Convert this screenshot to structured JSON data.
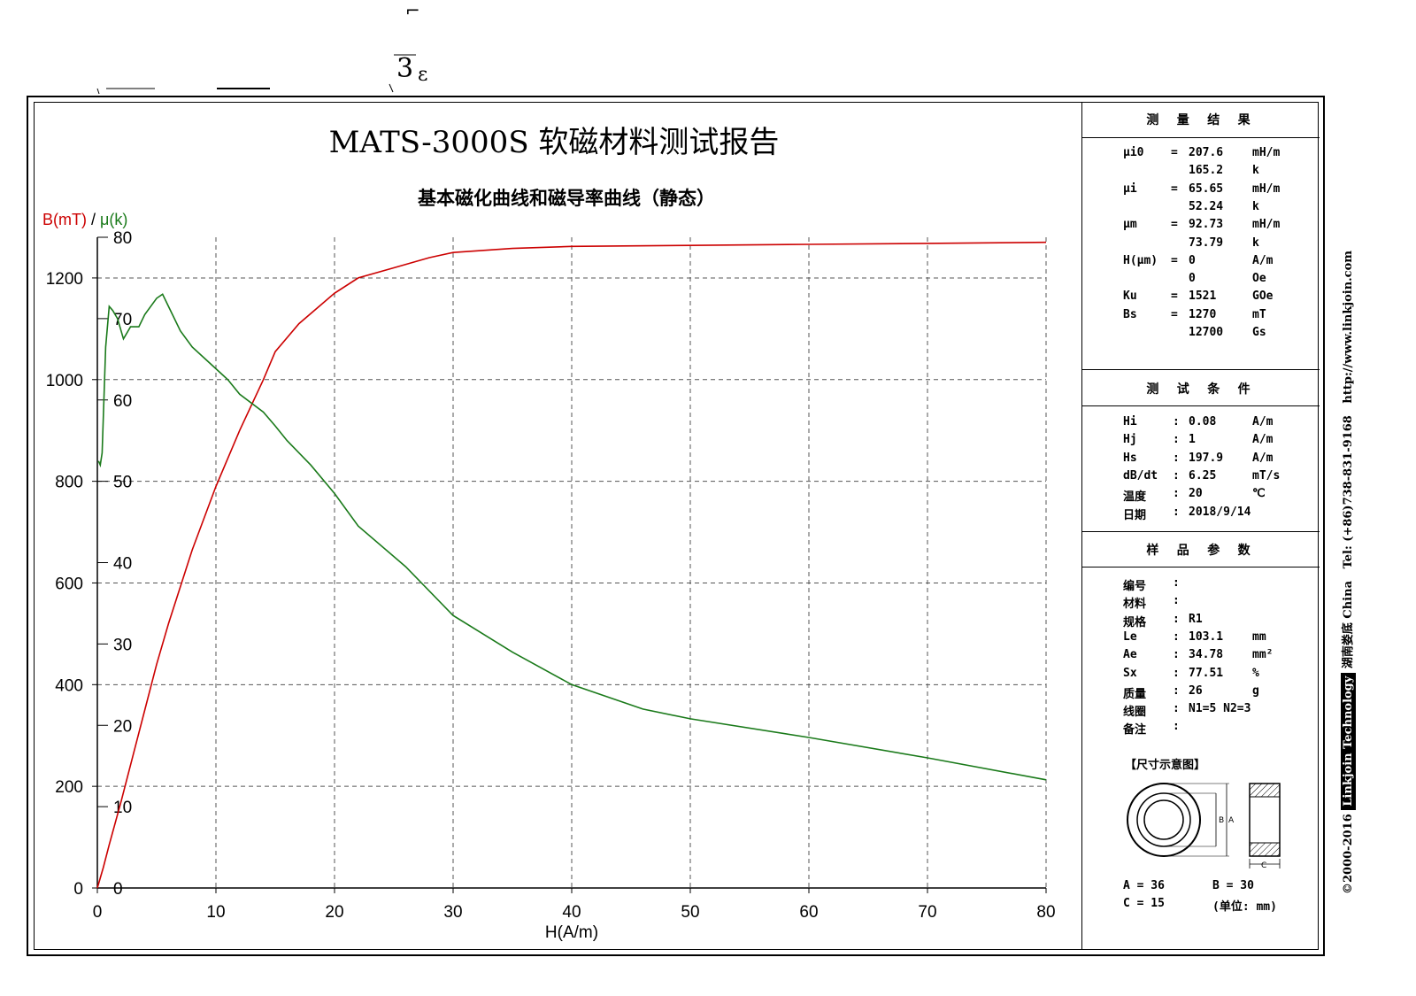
{
  "report_title": "MATS-3000S 软磁材料测试报告",
  "chart_data": {
    "type": "line",
    "title": "基本磁化曲线和磁导率曲线（静态）",
    "xlabel": "H(A/m)",
    "ylabel_left": "B(mT)",
    "ylabel_sep": " / ",
    "ylabel_right": "μ(k)",
    "xlim": [
      0,
      80
    ],
    "ylim_left": [
      0,
      1280
    ],
    "ylim_right": [
      0,
      80
    ],
    "x_ticks": [
      "0",
      "10",
      "20",
      "30",
      "40",
      "50",
      "60",
      "70",
      "80"
    ],
    "y_left_ticks": [
      "0",
      "200",
      "400",
      "600",
      "800",
      "1000",
      "1200"
    ],
    "y_right_ticks": [
      "0",
      "10",
      "20",
      "30",
      "40",
      "50",
      "60",
      "70",
      "80"
    ],
    "grid": true,
    "series": [
      {
        "axis": "left",
        "color": "#cc0000",
        "x": [
          0,
          0.5,
          1,
          2,
          3,
          4,
          5,
          6,
          8,
          10,
          12,
          14,
          15,
          17,
          20,
          22,
          25,
          28,
          30,
          35,
          40,
          50,
          60,
          70,
          80
        ],
        "y": [
          0,
          40,
          85,
          170,
          260,
          350,
          440,
          520,
          665,
          790,
          900,
          1000,
          1055,
          1110,
          1170,
          1200,
          1220,
          1240,
          1250,
          1258,
          1262,
          1264,
          1266,
          1268,
          1270
        ]
      },
      {
        "axis": "right",
        "color": "#1a7a1a",
        "x": [
          0.1,
          0.25,
          0.4,
          0.7,
          1.0,
          1.3,
          1.7,
          2.2,
          2.8,
          3.5,
          4.0,
          5.0,
          5.5,
          6.0,
          7.0,
          8.0,
          9.5,
          11,
          12,
          14,
          15,
          16,
          18,
          20,
          22,
          26,
          30,
          35,
          40,
          46,
          50,
          60,
          70,
          80
        ],
        "y": [
          52.5,
          52.0,
          53.5,
          66.5,
          71.5,
          71.0,
          70.0,
          67.5,
          69.0,
          69.0,
          70.5,
          72.5,
          73.0,
          71.5,
          68.5,
          66.5,
          64.5,
          62.5,
          60.7,
          58.5,
          56.8,
          55.0,
          52.0,
          48.5,
          44.5,
          39.5,
          33.5,
          29.0,
          25.0,
          22.0,
          20.8,
          18.5,
          16.0,
          13.3
        ]
      }
    ]
  },
  "panel": {
    "results_title": "测 量 结 果",
    "results": [
      {
        "label": "μi0",
        "eq": "=",
        "value": "207.6",
        "unit": "mH/m"
      },
      {
        "label": "",
        "eq": "",
        "value": "165.2",
        "unit": "k"
      },
      {
        "label": "μi",
        "eq": "=",
        "value": "65.65",
        "unit": "mH/m"
      },
      {
        "label": "",
        "eq": "",
        "value": "52.24",
        "unit": "k"
      },
      {
        "label": "μm",
        "eq": "=",
        "value": "92.73",
        "unit": "mH/m"
      },
      {
        "label": "",
        "eq": "",
        "value": "73.79",
        "unit": "k"
      },
      {
        "label": "H(μm)",
        "eq": "=",
        "value": "0",
        "unit": "A/m"
      },
      {
        "label": "",
        "eq": "",
        "value": "0",
        "unit": "Oe"
      },
      {
        "label": "Ku",
        "eq": "=",
        "value": "1521",
        "unit": "GOe"
      },
      {
        "label": "Bs",
        "eq": "=",
        "value": "1270",
        "unit": "mT"
      },
      {
        "label": "",
        "eq": "",
        "value": "12700",
        "unit": "Gs"
      }
    ],
    "conditions_title": "测 试 条 件",
    "conditions": [
      {
        "label": "Hi",
        "eq": ":",
        "value": "0.08",
        "unit": "A/m"
      },
      {
        "label": "Hj",
        "eq": ":",
        "value": "1",
        "unit": "A/m"
      },
      {
        "label": "Hs",
        "eq": ":",
        "value": "197.9",
        "unit": "A/m"
      },
      {
        "label": "dB/dt",
        "eq": ":",
        "value": "6.25",
        "unit": "mT/s"
      },
      {
        "label": "温度",
        "eq": ":",
        "value": "20",
        "unit": "℃"
      },
      {
        "label": "日期",
        "eq": ":",
        "value": "2018/9/14",
        "unit": ""
      }
    ],
    "sample_title": "样 品 参 数",
    "sample": [
      {
        "label": "编号",
        "eq": ":",
        "value": "",
        "unit": ""
      },
      {
        "label": "材料",
        "eq": ":",
        "value": "",
        "unit": ""
      },
      {
        "label": "规格",
        "eq": ":",
        "value": "R1",
        "unit": ""
      },
      {
        "label": "Le",
        "eq": ":",
        "value": "103.1",
        "unit": "mm"
      },
      {
        "label": "Ae",
        "eq": ":",
        "value": "34.78",
        "unit": "mm²"
      },
      {
        "label": "Sx",
        "eq": ":",
        "value": "77.51",
        "unit": "%"
      },
      {
        "label": "质量",
        "eq": ":",
        "value": "26",
        "unit": "g"
      },
      {
        "label": "线圈",
        "eq": ":",
        "value": "N1=5 N2=3",
        "unit": ""
      },
      {
        "label": "备注",
        "eq": ":",
        "value": "",
        "unit": ""
      }
    ],
    "dimension_title": "【尺寸示意图】",
    "dim_label_b": "B",
    "dim_label_a": "A",
    "dim_label_c": "C",
    "dim_a": "A = 36",
    "dim_b": "B = 30",
    "dim_c": "C = 15",
    "dim_unit": "(单位: mm)"
  },
  "side_text": {
    "copyright": "©2000-2016",
    "company": "Linkjoin Technology",
    "location": "湖南娄底 China",
    "tel": "Tel: (+86)738-831-9168",
    "url": "http://www.linkjoin.com"
  },
  "scan_marks": {
    "mark1": "⌐",
    "mark2": "3",
    "mark3": "ε"
  }
}
